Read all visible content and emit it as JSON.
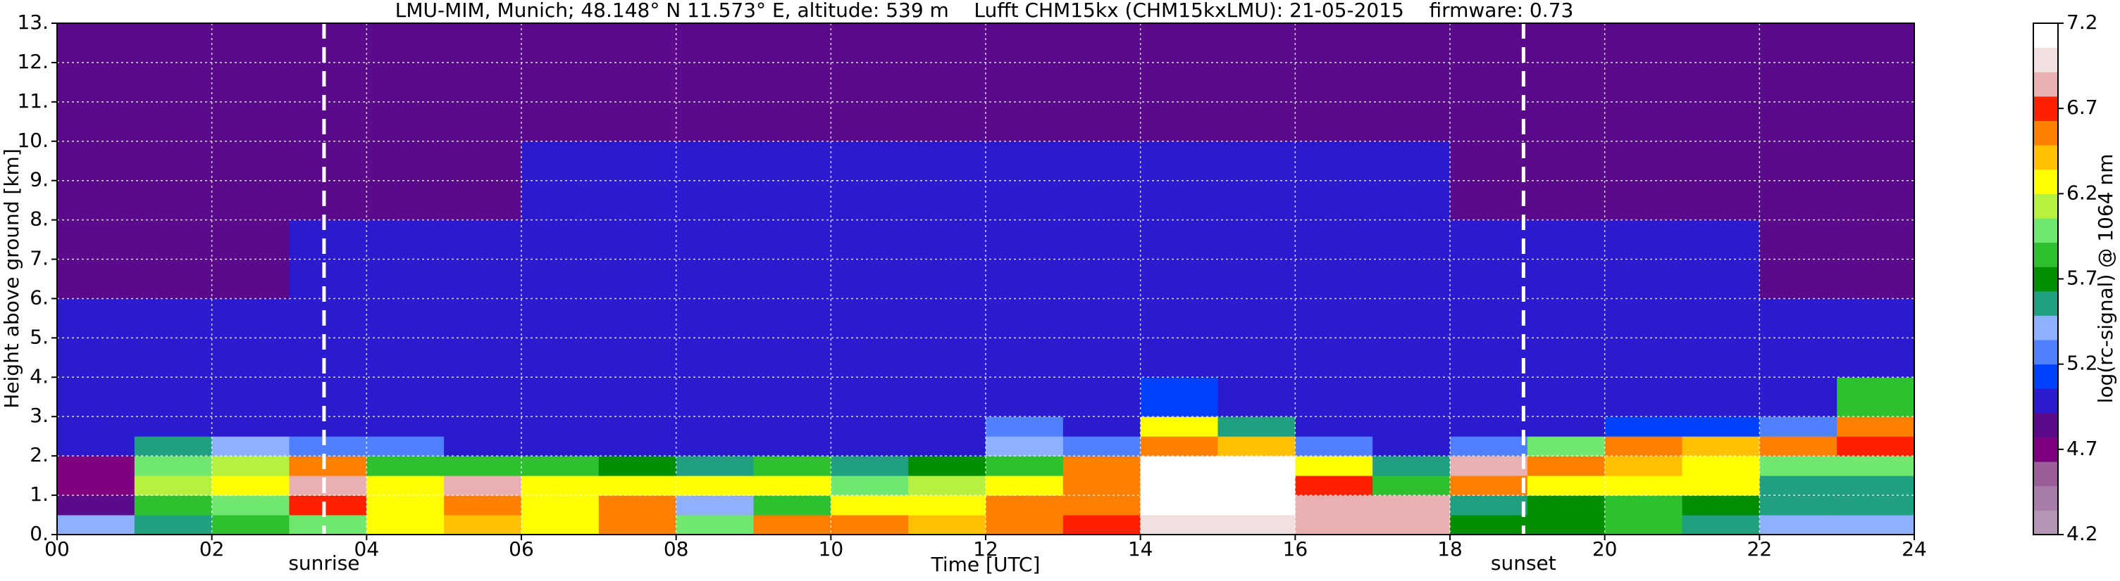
{
  "chart_data": {
    "type": "heatmap",
    "title": "LMU-MIM, Munich; 48.148° N 11.573° E, altitude: 539 m    Lufft CHM15kx (CHM15kxLMU): 21-05-2015    firmware: 0.73",
    "x_label": "Time [UTC]",
    "y_label": "Height above ground [km]",
    "colorbar_label": "log(rc-signal) @ 1064 nm",
    "xlim": [
      0,
      24
    ],
    "ylim": [
      0,
      13
    ],
    "xticks": [
      {
        "value": 0,
        "label": "00"
      },
      {
        "value": 2,
        "label": "02"
      },
      {
        "value": 4,
        "label": "04"
      },
      {
        "value": 6,
        "label": "06"
      },
      {
        "value": 8,
        "label": "08"
      },
      {
        "value": 10,
        "label": "10"
      },
      {
        "value": 12,
        "label": "12"
      },
      {
        "value": 14,
        "label": "14"
      },
      {
        "value": 16,
        "label": "16"
      },
      {
        "value": 18,
        "label": "18"
      },
      {
        "value": 20,
        "label": "20"
      },
      {
        "value": 22,
        "label": "22"
      },
      {
        "value": 24,
        "label": "24"
      }
    ],
    "yticks": [
      {
        "value": 0,
        "label": "0."
      },
      {
        "value": 1,
        "label": "1."
      },
      {
        "value": 2,
        "label": "2."
      },
      {
        "value": 3,
        "label": "3."
      },
      {
        "value": 4,
        "label": "4."
      },
      {
        "value": 5,
        "label": "5."
      },
      {
        "value": 6,
        "label": "6."
      },
      {
        "value": 7,
        "label": "7."
      },
      {
        "value": 8,
        "label": "8."
      },
      {
        "value": 9,
        "label": "9."
      },
      {
        "value": 10,
        "label": "10."
      },
      {
        "value": 11,
        "label": "11."
      },
      {
        "value": 12,
        "label": "12."
      },
      {
        "value": 13,
        "label": "13."
      }
    ],
    "grid": true,
    "zlim": [
      4.2,
      7.2
    ],
    "zticks": [
      4.2,
      4.7,
      5.2,
      5.7,
      6.2,
      6.7,
      7.2
    ],
    "colors": [
      "#b496b4",
      "#a77ca7",
      "#9a5f9a",
      "#800080",
      "#5a0a8a",
      "#2a1ad0",
      "#0040ff",
      "#4f80ff",
      "#8fb0ff",
      "#20a080",
      "#008f00",
      "#2fc02f",
      "#70e870",
      "#b8f040",
      "#ffff00",
      "#ffc000",
      "#ff8000",
      "#ff2000",
      "#e8b0b0",
      "#f0e0e0",
      "#ffffff"
    ],
    "x_edges": [
      0,
      1,
      2,
      3,
      4,
      5,
      6,
      7,
      8,
      9,
      10,
      11,
      12,
      13,
      14,
      15,
      16,
      17,
      18,
      19,
      20,
      21,
      22,
      23,
      24
    ],
    "y_edges": [
      0,
      0.5,
      1,
      1.5,
      2,
      2.5,
      3,
      4,
      6,
      8,
      10,
      13
    ],
    "z": [
      [
        5.4,
        5.6,
        5.8,
        6.0,
        6.3,
        6.4,
        6.3,
        6.5,
        6.0,
        6.5,
        6.6,
        6.4,
        6.6,
        6.7,
        7.0,
        7.0,
        6.9,
        6.8,
        5.7,
        5.7,
        5.8,
        5.6,
        5.4,
        5.4
      ],
      [
        4.8,
        5.9,
        6.0,
        6.7,
        6.2,
        6.5,
        6.2,
        6.5,
        5.4,
        5.8,
        6.2,
        6.2,
        6.5,
        6.6,
        7.1,
        7.1,
        6.9,
        6.8,
        5.5,
        5.7,
        5.8,
        5.7,
        5.5,
        5.5
      ],
      [
        4.7,
        6.1,
        6.3,
        6.8,
        6.3,
        6.8,
        6.2,
        6.2,
        6.3,
        6.2,
        6.0,
        6.1,
        6.3,
        6.6,
        7.2,
        7.2,
        6.7,
        5.9,
        6.5,
        6.3,
        6.2,
        6.2,
        5.6,
        5.6
      ],
      [
        4.7,
        6.0,
        6.1,
        6.6,
        5.8,
        5.8,
        5.8,
        5.7,
        5.6,
        5.8,
        5.6,
        5.7,
        5.8,
        6.6,
        7.1,
        7.1,
        6.2,
        5.6,
        6.8,
        6.6,
        6.4,
        6.2,
        6.0,
        6.0
      ],
      [
        5.0,
        5.6,
        5.4,
        5.2,
        5.3,
        5.0,
        5.0,
        5.0,
        5.0,
        5.0,
        5.0,
        5.0,
        5.4,
        5.2,
        6.6,
        6.4,
        5.2,
        5.0,
        5.3,
        6.0,
        6.5,
        6.4,
        6.6,
        6.7
      ],
      [
        5.0,
        5.0,
        5.0,
        5.0,
        5.0,
        5.0,
        5.0,
        5.0,
        5.0,
        5.0,
        5.0,
        5.0,
        5.2,
        5.0,
        6.2,
        5.6,
        5.0,
        5.0,
        5.0,
        5.0,
        5.1,
        5.1,
        5.2,
        6.5
      ],
      [
        5.0,
        5.0,
        5.0,
        5.0,
        5.0,
        5.0,
        5.0,
        5.0,
        5.0,
        5.0,
        5.0,
        5.0,
        5.0,
        5.0,
        5.1,
        5.0,
        5.0,
        5.0,
        5.0,
        5.0,
        5.0,
        5.0,
        5.0,
        5.8
      ],
      [
        5.0,
        5.0,
        5.0,
        5.0,
        5.0,
        5.0,
        5.0,
        5.0,
        5.0,
        5.0,
        5.0,
        5.0,
        5.0,
        5.0,
        5.0,
        5.0,
        5.0,
        5.0,
        5.0,
        5.0,
        5.0,
        5.0,
        5.0,
        5.0
      ],
      [
        4.9,
        4.9,
        4.9,
        5.0,
        5.0,
        5.0,
        5.0,
        5.0,
        5.0,
        5.0,
        5.0,
        5.0,
        5.0,
        5.0,
        5.0,
        5.0,
        5.0,
        5.0,
        5.0,
        5.0,
        5.0,
        5.0,
        4.9,
        4.9
      ],
      [
        4.9,
        4.9,
        4.9,
        4.9,
        4.9,
        4.9,
        5.0,
        5.0,
        5.0,
        5.0,
        5.0,
        5.0,
        5.0,
        5.0,
        5.0,
        5.0,
        5.0,
        5.0,
        4.9,
        4.9,
        4.9,
        4.9,
        4.9,
        4.9
      ],
      [
        4.9,
        4.9,
        4.9,
        4.9,
        4.9,
        4.9,
        4.9,
        4.9,
        4.9,
        4.9,
        4.9,
        4.9,
        4.9,
        4.9,
        4.9,
        4.9,
        4.9,
        4.9,
        4.9,
        4.9,
        4.9,
        4.9,
        4.9,
        4.9
      ]
    ],
    "vlines": [
      {
        "x": 3.45,
        "label": "sunrise"
      },
      {
        "x": 18.95,
        "label": "sunset"
      }
    ]
  }
}
